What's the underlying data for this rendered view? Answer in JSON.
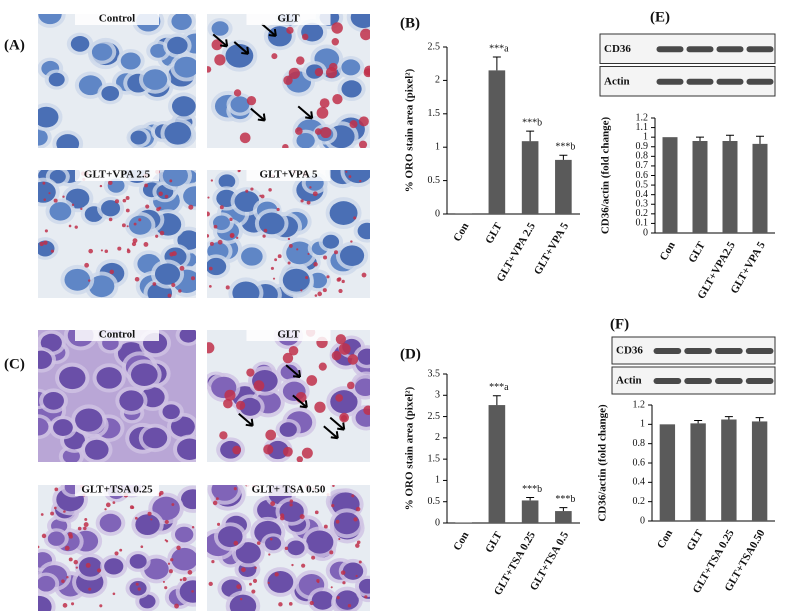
{
  "micrographs": [
    {
      "label": "(A)",
      "images": [
        "Control",
        "GLT",
        "GLT+VPA 2.5",
        "GLT+VPA 5"
      ]
    },
    {
      "label": "(C)",
      "images": [
        "Control",
        "GLT",
        "GLT+TSA 0.25",
        "GLT+ TSA 0.50"
      ]
    }
  ],
  "chart_data": [
    {
      "type": "bar",
      "panel_label": "(B)",
      "y_label": "% ORO stain area (pixel²)",
      "categories": [
        "Con",
        "GLT",
        "GLT+VPA 2.5",
        "GLT+VPA 5"
      ],
      "series": [
        {
          "color": "#5a5a5a",
          "values": [
            0.01,
            2.15,
            1.09,
            0.81
          ],
          "errors": [
            0,
            0.2,
            0.15,
            0.07
          ]
        }
      ],
      "annotations": [
        null,
        "***a",
        "***b",
        "***b"
      ],
      "ylim": [
        0,
        2.5
      ],
      "yticks": [
        0,
        0.5,
        1,
        1.5,
        2,
        2.5
      ]
    },
    {
      "type": "bar",
      "panel_label": "(D)",
      "y_label": "% ORO stain area (pixel²)",
      "categories": [
        "Con",
        "GLT",
        "GLT+TSA 0.25",
        "GLT+TSA 0.5"
      ],
      "series": [
        {
          "color": "#5a5a5a",
          "values": [
            0.01,
            2.77,
            0.53,
            0.28
          ],
          "errors": [
            0,
            0.22,
            0.07,
            0.08
          ]
        }
      ],
      "annotations": [
        null,
        "***a",
        "***b",
        "***b"
      ],
      "ylim": [
        0,
        3.5
      ],
      "yticks": [
        0,
        0.5,
        1,
        1.5,
        2,
        2.5,
        3,
        3.5
      ]
    },
    {
      "type": "bar",
      "panel_label": "(E)",
      "y_label": "CD36/actin (fold change)",
      "blot_labels": [
        "CD36",
        "Actin"
      ],
      "categories": [
        "Con",
        "GLT",
        "GLT+VPA2.5",
        "GLT+VPA 5"
      ],
      "series": [
        {
          "color": "#5a5a5a",
          "values": [
            1.0,
            0.96,
            0.96,
            0.93
          ],
          "errors": [
            0,
            0.04,
            0.06,
            0.08
          ]
        }
      ],
      "ylim": [
        0,
        1.2
      ],
      "yticks": [
        0,
        0.1,
        0.2,
        0.3,
        0.4,
        0.5,
        0.6,
        0.7,
        0.8,
        0.9,
        1,
        1.1,
        1.2
      ]
    },
    {
      "type": "bar",
      "panel_label": "(F)",
      "y_label": "CD36/actin (fold change)",
      "blot_labels": [
        "CD36",
        "Actin"
      ],
      "categories": [
        "Con",
        "GLT",
        "GLT+TSA 0.25",
        "GLT+TSA0.50"
      ],
      "series": [
        {
          "color": "#5a5a5a",
          "values": [
            1.0,
            1.01,
            1.05,
            1.03
          ],
          "errors": [
            0,
            0.03,
            0.03,
            0.04
          ]
        }
      ],
      "ylim": [
        0,
        1.2
      ],
      "yticks": [
        0,
        0.2,
        0.4,
        0.6,
        0.8,
        1,
        1.2
      ]
    }
  ]
}
